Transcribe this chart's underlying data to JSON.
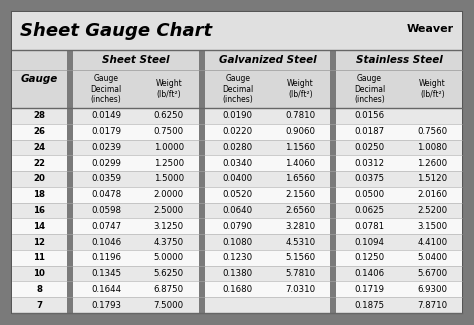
{
  "title": "Sheet Gauge Chart",
  "bg_outer": "#7a7a7a",
  "bg_inner": "#ffffff",
  "bg_header": "#d8d8d8",
  "bg_data_odd": "#e8e8e8",
  "bg_data_even": "#f8f8f8",
  "bg_sep": "#7a7a7a",
  "section_headers": [
    "Sheet Steel",
    "Galvanized Steel",
    "Stainless Steel"
  ],
  "gauges": [
    28,
    26,
    24,
    22,
    20,
    18,
    16,
    14,
    12,
    11,
    10,
    8,
    7
  ],
  "sheet_steel": [
    [
      "0.0149",
      "0.6250"
    ],
    [
      "0.0179",
      "0.7500"
    ],
    [
      "0.0239",
      "1.0000"
    ],
    [
      "0.0299",
      "1.2500"
    ],
    [
      "0.0359",
      "1.5000"
    ],
    [
      "0.0478",
      "2.0000"
    ],
    [
      "0.0598",
      "2.5000"
    ],
    [
      "0.0747",
      "3.1250"
    ],
    [
      "0.1046",
      "4.3750"
    ],
    [
      "0.1196",
      "5.0000"
    ],
    [
      "0.1345",
      "5.6250"
    ],
    [
      "0.1644",
      "6.8750"
    ],
    [
      "0.1793",
      "7.5000"
    ]
  ],
  "galvanized_steel": [
    [
      "0.0190",
      "0.7810"
    ],
    [
      "0.0220",
      "0.9060"
    ],
    [
      "0.0280",
      "1.1560"
    ],
    [
      "0.0340",
      "1.4060"
    ],
    [
      "0.0400",
      "1.6560"
    ],
    [
      "0.0520",
      "2.1560"
    ],
    [
      "0.0640",
      "2.6560"
    ],
    [
      "0.0790",
      "3.2810"
    ],
    [
      "0.1080",
      "4.5310"
    ],
    [
      "0.1230",
      "5.1560"
    ],
    [
      "0.1380",
      "5.7810"
    ],
    [
      "0.1680",
      "7.0310"
    ],
    [
      "",
      ""
    ]
  ],
  "stainless_steel": [
    [
      "0.0156",
      ""
    ],
    [
      "0.0187",
      "0.7560"
    ],
    [
      "0.0250",
      "1.0080"
    ],
    [
      "0.0312",
      "1.2600"
    ],
    [
      "0.0375",
      "1.5120"
    ],
    [
      "0.0500",
      "2.0160"
    ],
    [
      "0.0625",
      "2.5200"
    ],
    [
      "0.0781",
      "3.1500"
    ],
    [
      "0.1094",
      "4.4100"
    ],
    [
      "0.1250",
      "5.0400"
    ],
    [
      "0.1406",
      "5.6700"
    ],
    [
      "0.1719",
      "6.9300"
    ],
    [
      "0.1875",
      "7.8710"
    ]
  ]
}
